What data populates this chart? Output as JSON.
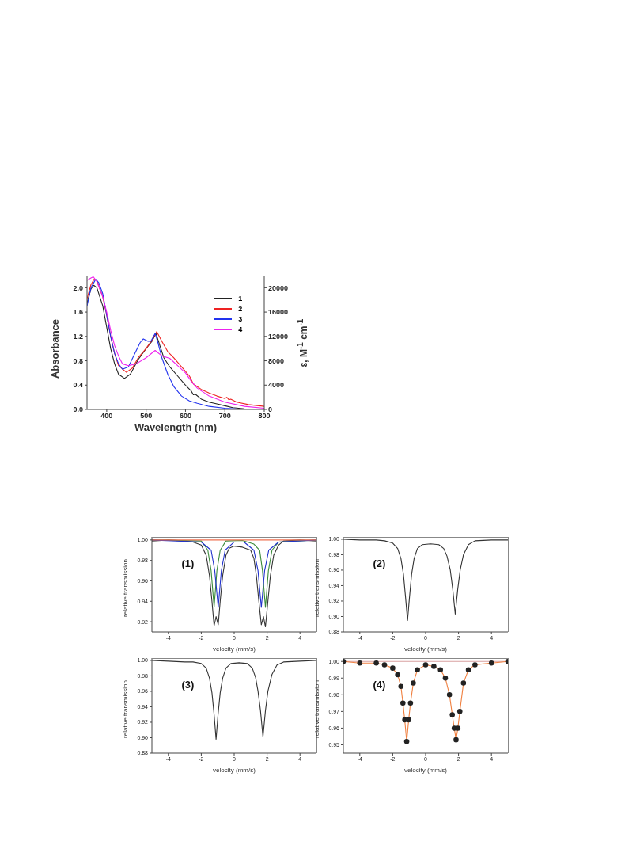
{
  "chart_data": [
    {
      "type": "line",
      "xlabel": "Wavelength (nm)",
      "ylabel": "Absorbance",
      "y2label": "ε, M$^{-1}$ cm$^{-1}$",
      "xlim": [
        350,
        800
      ],
      "xticks": [
        400,
        500,
        600,
        700,
        800
      ],
      "ylim": [
        0,
        2.2
      ],
      "yticks": [
        {
          "value": 0,
          "label": "0.0"
        },
        0.4,
        0.8,
        1.2,
        1.6,
        {
          "value": 2,
          "label": "2.0"
        }
      ],
      "y2lim": [
        0,
        22000
      ],
      "y2ticks": [
        0,
        4000,
        8000,
        12000,
        16000,
        20000
      ],
      "legend": "top right",
      "series": [
        {
          "name": "1",
          "color": "#222222",
          "x": [
            350,
            360,
            367,
            375,
            390,
            400,
            410,
            420,
            430,
            445,
            460,
            480,
            500,
            515,
            525,
            535,
            545,
            560,
            580,
            600,
            615,
            620,
            625,
            640,
            660,
            680,
            700,
            720,
            750,
            800
          ],
          "values": [
            1.75,
            1.98,
            2.04,
            2.0,
            1.7,
            1.35,
            1.0,
            0.75,
            0.58,
            0.51,
            0.58,
            0.82,
            1.0,
            1.12,
            1.25,
            1.05,
            0.85,
            0.7,
            0.55,
            0.4,
            0.3,
            0.24,
            0.25,
            0.17,
            0.12,
            0.09,
            0.06,
            0.03,
            0.01,
            0.0
          ]
        },
        {
          "name": "2",
          "color": "#ee2222",
          "x": [
            350,
            360,
            368,
            375,
            390,
            400,
            410,
            420,
            430,
            450,
            465,
            480,
            500,
            515,
            527,
            540,
            555,
            570,
            590,
            610,
            620,
            640,
            660,
            680,
            700,
            705,
            710,
            715,
            730,
            760,
            800
          ],
          "values": [
            1.82,
            2.05,
            2.14,
            2.12,
            1.85,
            1.55,
            1.2,
            0.92,
            0.72,
            0.61,
            0.68,
            0.85,
            1.0,
            1.14,
            1.28,
            1.12,
            0.95,
            0.85,
            0.7,
            0.55,
            0.42,
            0.33,
            0.27,
            0.22,
            0.18,
            0.2,
            0.16,
            0.17,
            0.12,
            0.08,
            0.05
          ]
        },
        {
          "name": "3",
          "color": "#2233ee",
          "x": [
            350,
            360,
            372,
            380,
            390,
            400,
            410,
            420,
            430,
            440,
            455,
            470,
            485,
            493,
            505,
            512,
            523,
            530,
            540,
            555,
            570,
            590,
            610,
            630,
            660,
            700,
            750,
            800
          ],
          "values": [
            1.7,
            2.0,
            2.14,
            2.08,
            1.9,
            1.55,
            1.2,
            0.92,
            0.75,
            0.66,
            0.7,
            0.9,
            1.1,
            1.16,
            1.12,
            1.12,
            1.25,
            1.1,
            0.85,
            0.58,
            0.38,
            0.22,
            0.14,
            0.1,
            0.05,
            0.02,
            0.0,
            0.0
          ]
        },
        {
          "name": "4",
          "color": "#ee22ee",
          "x": [
            350,
            360,
            366,
            375,
            390,
            400,
            410,
            420,
            430,
            440,
            455,
            475,
            500,
            523,
            540,
            560,
            580,
            600,
            615,
            630,
            660,
            700,
            750,
            800
          ],
          "values": [
            2.12,
            2.16,
            2.18,
            2.1,
            1.85,
            1.6,
            1.3,
            1.05,
            0.88,
            0.75,
            0.72,
            0.75,
            0.85,
            0.97,
            0.88,
            0.84,
            0.72,
            0.6,
            0.46,
            0.35,
            0.22,
            0.12,
            0.05,
            0.02
          ]
        }
      ]
    },
    {
      "type": "line",
      "xlabel": "velocity (mm/s)",
      "ylabel": "relative transmission",
      "annotations": [
        "(1)"
      ],
      "xlim": [
        -5,
        5
      ],
      "xticks": [
        -4,
        -2,
        0,
        2,
        4
      ],
      "ylim": [
        0.91,
        1.003
      ],
      "yticks": [
        0.92,
        0.94,
        0.96,
        0.98,
        {
          "value": 1,
          "label": "1.00"
        }
      ],
      "series": [
        {
          "color": "#333333",
          "x": [
            -5,
            -4,
            -3,
            -2.5,
            -2,
            -1.7,
            -1.5,
            -1.35,
            -1.22,
            -1.1,
            -0.97,
            -0.85,
            -0.7,
            -0.5,
            -0.3,
            0,
            0.5,
            1.0,
            1.2,
            1.35,
            1.5,
            1.65,
            1.78,
            1.9,
            2.05,
            2.2,
            2.4,
            2.7,
            3,
            4,
            5
          ],
          "values": [
            0.999,
            1.0,
            0.999,
            0.998,
            0.995,
            0.985,
            0.965,
            0.94,
            0.916,
            0.925,
            0.917,
            0.94,
            0.965,
            0.985,
            0.992,
            0.994,
            0.993,
            0.99,
            0.982,
            0.965,
            0.94,
            0.917,
            0.925,
            0.915,
            0.94,
            0.965,
            0.985,
            0.995,
            0.999,
            1.0,
            0.999
          ]
        },
        {
          "color": "#3a8a3a",
          "x": [
            -5,
            -2,
            -1.6,
            -1.4,
            -1.22,
            -1.05,
            -0.85,
            -0.5,
            0.5,
            1.2,
            1.55,
            1.72,
            1.9,
            2.08,
            2.3,
            2.7,
            5
          ],
          "values": [
            1.0,
            0.999,
            0.99,
            0.97,
            0.934,
            0.97,
            0.99,
            0.999,
            0.9995,
            0.996,
            0.99,
            0.97,
            0.934,
            0.97,
            0.99,
            0.998,
            1.0
          ]
        },
        {
          "color": "#2233cc",
          "x": [
            -5,
            -2,
            -1.4,
            -1.18,
            -0.97,
            -0.78,
            -0.55,
            0,
            0.6,
            1.2,
            1.45,
            1.65,
            1.85,
            2.1,
            2.7,
            5
          ],
          "values": [
            1.0,
            0.998,
            0.99,
            0.97,
            0.934,
            0.97,
            0.99,
            0.998,
            0.998,
            0.99,
            0.97,
            0.934,
            0.97,
            0.99,
            0.998,
            1.0
          ]
        },
        {
          "color": "#f07050",
          "x": [
            -5,
            5
          ],
          "values": [
            1.0,
            1.0
          ]
        }
      ]
    },
    {
      "type": "line",
      "xlabel": "velocity (mm/s)",
      "ylabel": "relative transmission",
      "annotations": [
        "(2)"
      ],
      "xlim": [
        -5,
        5
      ],
      "xticks": [
        -4,
        -2,
        0,
        2,
        4
      ],
      "ylim": [
        0.88,
        1.003
      ],
      "yticks": [
        0.88,
        {
          "value": 0.9,
          "label": "0.90"
        },
        0.92,
        0.94,
        0.96,
        0.98,
        {
          "value": 1,
          "label": "1.00"
        }
      ],
      "series": [
        {
          "color": "#333333",
          "x": [
            -5,
            -4,
            -3,
            -2.5,
            -2,
            -1.7,
            -1.5,
            -1.35,
            -1.22,
            -1.1,
            -0.98,
            -0.85,
            -0.7,
            -0.5,
            -0.2,
            0.3,
            0.8,
            1.1,
            1.3,
            1.5,
            1.65,
            1.8,
            1.95,
            2.1,
            2.3,
            2.6,
            3,
            4,
            5
          ],
          "values": [
            1.0,
            0.999,
            0.999,
            0.998,
            0.995,
            0.988,
            0.975,
            0.955,
            0.925,
            0.895,
            0.925,
            0.955,
            0.975,
            0.988,
            0.993,
            0.994,
            0.993,
            0.988,
            0.978,
            0.96,
            0.935,
            0.903,
            0.935,
            0.96,
            0.98,
            0.993,
            0.998,
            0.999,
            0.999
          ]
        }
      ]
    },
    {
      "type": "line",
      "xlabel": "velocity (mm/s)",
      "ylabel": "relative transmission",
      "annotations": [
        "(3)"
      ],
      "xlim": [
        -5,
        5
      ],
      "xticks": [
        -4,
        -2,
        0,
        2,
        4
      ],
      "ylim": [
        0.88,
        1.003
      ],
      "yticks": [
        0.88,
        {
          "value": 0.9,
          "label": "0.90"
        },
        0.92,
        0.94,
        0.96,
        0.98,
        {
          "value": 1,
          "label": "1.00"
        }
      ],
      "series": [
        {
          "color": "#333333",
          "x": [
            -5,
            -4,
            -3,
            -2.5,
            -2,
            -1.7,
            -1.5,
            -1.35,
            -1.22,
            -1.1,
            -0.98,
            -0.85,
            -0.7,
            -0.5,
            -0.2,
            0.3,
            0.8,
            1.1,
            1.3,
            1.45,
            1.6,
            1.75,
            1.9,
            2.05,
            2.3,
            2.6,
            3,
            4,
            5
          ],
          "values": [
            1.0,
            0.999,
            0.998,
            0.998,
            0.996,
            0.99,
            0.977,
            0.958,
            0.93,
            0.898,
            0.93,
            0.958,
            0.977,
            0.99,
            0.996,
            0.997,
            0.996,
            0.99,
            0.978,
            0.96,
            0.935,
            0.901,
            0.935,
            0.96,
            0.982,
            0.994,
            0.998,
            0.999,
            1.0
          ]
        }
      ]
    },
    {
      "type": "line",
      "xlabel": "velocity (mm/s)",
      "ylabel": "relative transmission",
      "annotations": [
        "(4)"
      ],
      "xlim": [
        -5,
        5
      ],
      "xticks": [
        -4,
        -2,
        0,
        2,
        4
      ],
      "ylim": [
        0.945,
        1.002
      ],
      "yticks": [
        0.95,
        0.96,
        0.97,
        0.98,
        0.99,
        {
          "value": 1,
          "label": "1.00"
        }
      ],
      "series": [
        {
          "color": "#d9a0a0",
          "x": [
            -5,
            5
          ],
          "values": [
            1.0,
            1.0
          ]
        },
        {
          "color": "#f08040",
          "x": [
            -5,
            -4,
            -3,
            -2.5,
            -2,
            -1.7,
            -1.5,
            -1.38,
            -1.27,
            -1.15,
            -1.03,
            -0.92,
            -0.75,
            -0.5,
            0,
            0.5,
            0.9,
            1.2,
            1.45,
            1.62,
            1.74,
            1.85,
            1.96,
            2.08,
            2.3,
            2.6,
            3,
            4,
            5
          ],
          "values": [
            1.0,
            0.999,
            0.999,
            0.998,
            0.996,
            0.992,
            0.985,
            0.975,
            0.965,
            0.952,
            0.965,
            0.975,
            0.987,
            0.995,
            0.998,
            0.997,
            0.995,
            0.99,
            0.98,
            0.968,
            0.96,
            0.953,
            0.96,
            0.97,
            0.987,
            0.995,
            0.998,
            0.999,
            1.0
          ]
        },
        {
          "type": "scatter",
          "marker": "circle",
          "color": "#222222",
          "x": [
            -5,
            -4,
            -3,
            -2.5,
            -2,
            -1.7,
            -1.5,
            -1.38,
            -1.27,
            -1.15,
            -1.03,
            -0.92,
            -0.75,
            -0.5,
            0,
            0.5,
            0.9,
            1.2,
            1.45,
            1.62,
            1.74,
            1.85,
            1.96,
            2.08,
            2.3,
            2.6,
            3,
            4,
            5
          ],
          "values": [
            1.0,
            0.999,
            0.999,
            0.998,
            0.996,
            0.992,
            0.985,
            0.975,
            0.965,
            0.952,
            0.965,
            0.975,
            0.987,
            0.995,
            0.998,
            0.997,
            0.995,
            0.99,
            0.98,
            0.968,
            0.96,
            0.953,
            0.96,
            0.97,
            0.987,
            0.995,
            0.998,
            0.999,
            1.0
          ]
        }
      ]
    }
  ]
}
